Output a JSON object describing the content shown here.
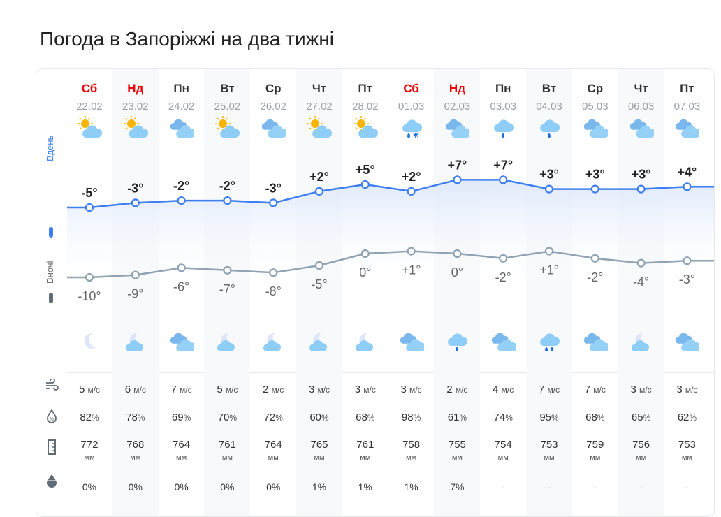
{
  "title": "Погода в Запоріжжі на два тижні",
  "legend": {
    "day": "Вдень",
    "night": "Вночі",
    "day_color": "#3d7ef0",
    "night_color": "#8fa3b3"
  },
  "units": {
    "wind": "м/с",
    "humidity": "%",
    "pressure": "мм",
    "precip": "%"
  },
  "row_icons": [
    "wind-icon",
    "humidity-icon",
    "pressure-icon",
    "precipitation-icon"
  ],
  "days": [
    {
      "dow": "Сб",
      "date": "22.02",
      "weekend": true,
      "day_icon": "sun-cloud",
      "night_icon": "moon",
      "day_t": "-5°",
      "night_t": "-10°",
      "wind": "5",
      "hum": "82",
      "pres": "772",
      "precip": "0%",
      "dv": -5,
      "nv": -10
    },
    {
      "dow": "Нд",
      "date": "23.02",
      "weekend": true,
      "day_icon": "sun-cloud",
      "night_icon": "moon-cloud",
      "day_t": "-3°",
      "night_t": "-9°",
      "wind": "6",
      "hum": "78",
      "pres": "768",
      "precip": "0%",
      "dv": -3,
      "nv": -9
    },
    {
      "dow": "Пн",
      "date": "24.02",
      "weekend": false,
      "day_icon": "cloudy",
      "night_icon": "cloudy",
      "day_t": "-2°",
      "night_t": "-6°",
      "wind": "7",
      "hum": "69",
      "pres": "764",
      "precip": "0%",
      "dv": -2,
      "nv": -6
    },
    {
      "dow": "Вт",
      "date": "25.02",
      "weekend": false,
      "day_icon": "sun-cloud",
      "night_icon": "moon-cloud",
      "day_t": "-2°",
      "night_t": "-7°",
      "wind": "5",
      "hum": "70",
      "pres": "761",
      "precip": "0%",
      "dv": -2,
      "nv": -7
    },
    {
      "dow": "Ср",
      "date": "26.02",
      "weekend": false,
      "day_icon": "cloudy",
      "night_icon": "moon-cloud",
      "day_t": "-3°",
      "night_t": "-8°",
      "wind": "2",
      "hum": "72",
      "pres": "764",
      "precip": "0%",
      "dv": -3,
      "nv": -8
    },
    {
      "dow": "Чт",
      "date": "27.02",
      "weekend": false,
      "day_icon": "sun-cloud",
      "night_icon": "moon-cloud",
      "day_t": "+2°",
      "night_t": "-5°",
      "wind": "3",
      "hum": "60",
      "pres": "765",
      "precip": "1%",
      "dv": 2,
      "nv": -5
    },
    {
      "dow": "Пт",
      "date": "28.02",
      "weekend": false,
      "day_icon": "sun-cloud",
      "night_icon": "moon-cloud",
      "day_t": "+5°",
      "night_t": "0°",
      "wind": "3",
      "hum": "68",
      "pres": "761",
      "precip": "1%",
      "dv": 5,
      "nv": 0
    },
    {
      "dow": "Сб",
      "date": "01.03",
      "weekend": true,
      "day_icon": "rain-snow",
      "night_icon": "cloudy",
      "day_t": "+2°",
      "night_t": "+1°",
      "wind": "3",
      "hum": "98",
      "pres": "758",
      "precip": "1%",
      "dv": 2,
      "nv": 1
    },
    {
      "dow": "Нд",
      "date": "02.03",
      "weekend": true,
      "day_icon": "cloudy",
      "night_icon": "rain",
      "day_t": "+7°",
      "night_t": "0°",
      "wind": "2",
      "hum": "61",
      "pres": "755",
      "precip": "7%",
      "dv": 7,
      "nv": 0
    },
    {
      "dow": "Пн",
      "date": "03.03",
      "weekend": false,
      "day_icon": "rain",
      "night_icon": "cloudy",
      "day_t": "+7°",
      "night_t": "-2°",
      "wind": "4",
      "hum": "74",
      "pres": "754",
      "precip": "-",
      "dv": 7,
      "nv": -2
    },
    {
      "dow": "Вт",
      "date": "04.03",
      "weekend": false,
      "day_icon": "rain",
      "night_icon": "heavy-rain",
      "day_t": "+3°",
      "night_t": "+1°",
      "wind": "7",
      "hum": "95",
      "pres": "753",
      "precip": "-",
      "dv": 3,
      "nv": 1
    },
    {
      "dow": "Ср",
      "date": "05.03",
      "weekend": false,
      "day_icon": "cloudy",
      "night_icon": "cloudy",
      "day_t": "+3°",
      "night_t": "-2°",
      "wind": "7",
      "hum": "68",
      "pres": "759",
      "precip": "-",
      "dv": 3,
      "nv": -2
    },
    {
      "dow": "Чт",
      "date": "06.03",
      "weekend": false,
      "day_icon": "cloudy",
      "night_icon": "moon-cloud",
      "day_t": "+3°",
      "night_t": "-4°",
      "wind": "3",
      "hum": "65",
      "pres": "756",
      "precip": "-",
      "dv": 3,
      "nv": -4
    },
    {
      "dow": "Пт",
      "date": "07.03",
      "weekend": false,
      "day_icon": "cloudy",
      "night_icon": "cloudy",
      "day_t": "+4°",
      "night_t": "-3°",
      "wind": "3",
      "hum": "62",
      "pres": "753",
      "precip": "-",
      "dv": 4,
      "nv": -3
    }
  ]
}
